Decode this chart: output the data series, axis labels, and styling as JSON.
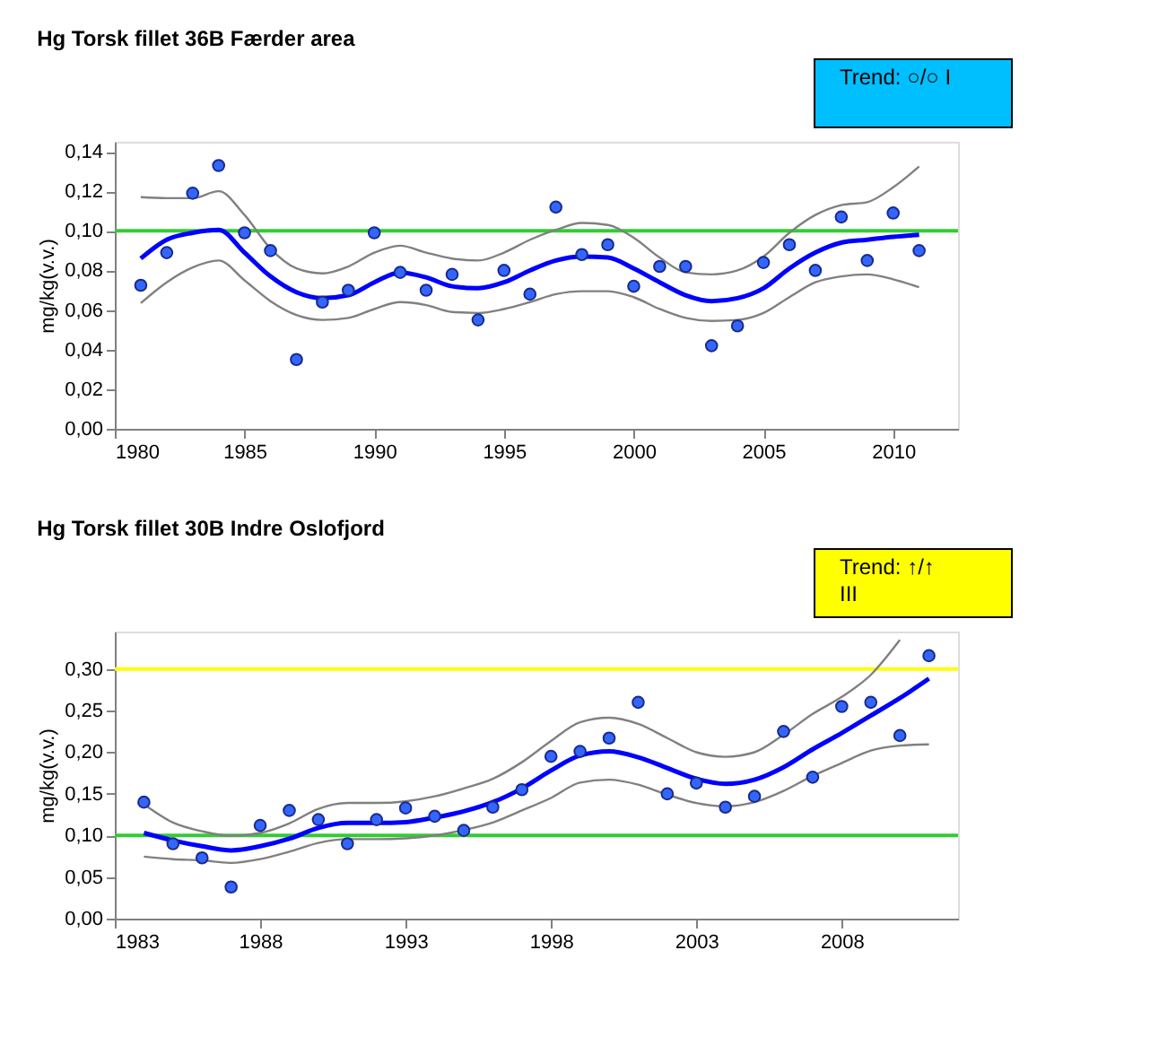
{
  "chart_data": [
    {
      "type": "scatter",
      "title": "Hg Torsk fillet 36B Færder area",
      "ylabel": "mg/kg(v.v.)",
      "annotations": [
        "Trend: ○/○   I"
      ],
      "grid": false,
      "marker": "circle",
      "xlim": [
        1980,
        2012.5
      ],
      "xticks": [
        1980,
        1985,
        1990,
        1995,
        2000,
        2005,
        2010
      ],
      "ylim": [
        0,
        0.145
      ],
      "yticks": [
        {
          "value": 0,
          "label": "0,00"
        },
        {
          "value": 0.02,
          "label": "0,02"
        },
        {
          "value": 0.04,
          "label": "0,04"
        },
        {
          "value": 0.06,
          "label": "0,06"
        },
        {
          "value": 0.08,
          "label": "0,08"
        },
        {
          "value": 0.1,
          "label": "0,10"
        },
        {
          "value": 0.12,
          "label": "0,12"
        },
        {
          "value": 0.14,
          "label": "0,14"
        }
      ],
      "x": [
        1981,
        1982,
        1983,
        1984,
        1985,
        1986,
        1987,
        1988,
        1989,
        1990,
        1991,
        1992,
        1993,
        1994,
        1995,
        1996,
        1997,
        1998,
        1999,
        2000,
        2001,
        2002,
        2003,
        2004,
        2005,
        2006,
        2007,
        2008,
        2009,
        2010,
        2011
      ],
      "ref_lines": [
        {
          "axis": "y",
          "value": 0.1,
          "color": "#33cc33"
        }
      ],
      "series": [
        {
          "type": "line",
          "marker": "none",
          "color": "#808080",
          "values": [
            0.117,
            0.1165,
            0.1165,
            0.12,
            0.108,
            0.091,
            0.081,
            0.0785,
            0.082,
            0.089,
            0.0925,
            0.089,
            0.086,
            0.085,
            0.089,
            0.0955,
            0.1005,
            0.104,
            0.103,
            0.0965,
            0.0865,
            0.079,
            0.078,
            0.08,
            0.087,
            0.099,
            0.108,
            0.113,
            0.1145,
            0.122,
            0.1325
          ]
        },
        {
          "type": "line",
          "marker": "none",
          "color": "#808080",
          "values": [
            0.0635,
            0.074,
            0.0815,
            0.085,
            0.075,
            0.0645,
            0.0575,
            0.055,
            0.056,
            0.0605,
            0.064,
            0.0625,
            0.059,
            0.0585,
            0.0605,
            0.064,
            0.068,
            0.0695,
            0.0695,
            0.0665,
            0.0605,
            0.056,
            0.0545,
            0.055,
            0.0585,
            0.0665,
            0.074,
            0.077,
            0.078,
            0.0755,
            0.0715
          ]
        },
        {
          "type": "line",
          "marker": "none",
          "color": "#0000ff",
          "values": [
            0.086,
            0.0955,
            0.099,
            0.1005,
            0.089,
            0.077,
            0.069,
            0.066,
            0.0675,
            0.074,
            0.079,
            0.0765,
            0.072,
            0.071,
            0.074,
            0.08,
            0.085,
            0.087,
            0.0865,
            0.081,
            0.074,
            0.0675,
            0.0645,
            0.066,
            0.071,
            0.081,
            0.089,
            0.094,
            0.0955,
            0.097,
            0.098
          ]
        },
        {
          "color": "#3366ff",
          "values": [
            0.0725,
            0.089,
            0.119,
            0.133,
            0.099,
            0.09,
            0.035,
            0.064,
            0.07,
            0.099,
            0.079,
            0.07,
            0.078,
            0.055,
            0.08,
            0.068,
            0.112,
            0.088,
            0.093,
            0.072,
            0.082,
            0.082,
            0.042,
            0.052,
            0.084,
            0.093,
            0.08,
            0.107,
            0.085,
            0.109,
            0.09
          ]
        }
      ]
    },
    {
      "type": "scatter",
      "title": "Hg Torsk fillet 30B Indre Oslofjord",
      "ylabel": "mg/kg(v.v.)",
      "annotations": [
        "Trend: ↑/↑",
        "III"
      ],
      "grid": false,
      "marker": "circle",
      "xlim": [
        1983,
        2012
      ],
      "xticks": [
        1983,
        1988,
        1993,
        1998,
        2003,
        2008
      ],
      "ylim": [
        0,
        0.345
      ],
      "yticks": [
        {
          "value": 0,
          "label": "0,00"
        },
        {
          "value": 0.05,
          "label": "0,05"
        },
        {
          "value": 0.1,
          "label": "0,10"
        },
        {
          "value": 0.15,
          "label": "0,15"
        },
        {
          "value": 0.2,
          "label": "0,20"
        },
        {
          "value": 0.25,
          "label": "0,25"
        },
        {
          "value": 0.3,
          "label": "0,30"
        }
      ],
      "x": [
        1984,
        1985,
        1986,
        1987,
        1988,
        1989,
        1990,
        1991,
        1992,
        1993,
        1994,
        1995,
        1996,
        1997,
        1998,
        1999,
        2000,
        2001,
        2002,
        2003,
        2004,
        2005,
        2006,
        2007,
        2008,
        2009,
        2010,
        2011
      ],
      "ref_lines": [
        {
          "axis": "y",
          "value": 0.1,
          "color": "#33cc33"
        },
        {
          "axis": "y",
          "value": 0.3,
          "color": "#ffff00"
        }
      ],
      "series": [
        {
          "type": "line",
          "marker": "none",
          "color": "#808080",
          "values": [
            0.1375,
            0.1155,
            0.105,
            0.0995,
            0.103,
            0.1145,
            0.132,
            0.139,
            0.139,
            0.141,
            0.147,
            0.1565,
            0.168,
            0.188,
            0.2135,
            0.236,
            0.2415,
            0.234,
            0.217,
            0.2,
            0.1945,
            0.2,
            0.221,
            0.246,
            0.2665,
            0.293,
            0.335,
            null
          ]
        },
        {
          "type": "line",
          "marker": "none",
          "color": "#808080",
          "values": [
            0.0745,
            0.0715,
            0.07,
            0.067,
            0.0715,
            0.0805,
            0.091,
            0.0955,
            0.0955,
            0.0965,
            0.1,
            0.1065,
            0.1155,
            0.13,
            0.145,
            0.1635,
            0.167,
            0.161,
            0.149,
            0.139,
            0.135,
            0.14,
            0.1535,
            0.1715,
            0.187,
            0.202,
            0.208,
            0.2095
          ]
        },
        {
          "type": "line",
          "marker": "none",
          "color": "#0000ff",
          "values": [
            0.103,
            0.094,
            0.087,
            0.082,
            0.087,
            0.096,
            0.109,
            0.115,
            0.115,
            0.116,
            0.1215,
            0.129,
            0.14,
            0.1565,
            0.178,
            0.196,
            0.201,
            0.194,
            0.181,
            0.168,
            0.162,
            0.167,
            0.182,
            0.2035,
            0.223,
            0.244,
            0.265,
            0.2885
          ]
        },
        {
          "color": "#3366ff",
          "values": [
            0.14,
            0.09,
            0.073,
            0.038,
            0.112,
            0.13,
            0.119,
            0.09,
            0.119,
            0.133,
            0.123,
            0.106,
            0.134,
            0.155,
            0.195,
            0.201,
            0.217,
            0.26,
            0.15,
            0.163,
            0.134,
            0.147,
            0.225,
            0.17,
            0.255,
            0.26,
            0.22,
            0.316
          ]
        }
      ]
    }
  ]
}
